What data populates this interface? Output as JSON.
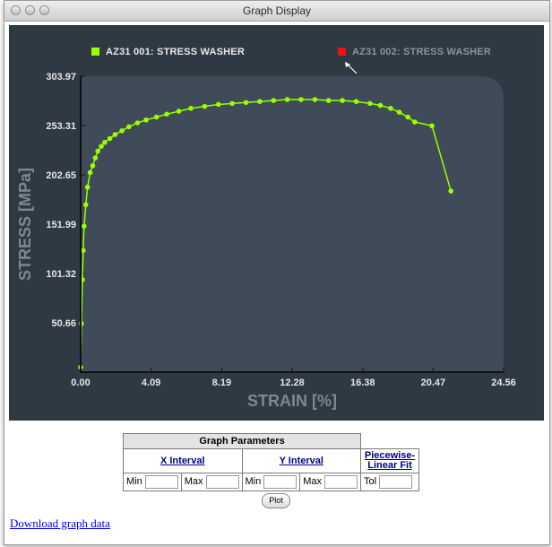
{
  "window": {
    "title": "Graph Display"
  },
  "legend": [
    {
      "label": "AZ31 001: STRESS WASHER",
      "color": "#99ff00",
      "active": true
    },
    {
      "label": "AZ31 002: STRESS WASHER",
      "color": "#ee1111",
      "active": false
    }
  ],
  "chart_data": {
    "type": "scatter",
    "xlabel": "STRAIN [%]",
    "ylabel": "STRESS [MPa]",
    "xlim": [
      0,
      24.56
    ],
    "ylim": [
      0,
      303.97
    ],
    "x_ticks": [
      "0.00",
      "4.09",
      "8.19",
      "12.28",
      "16.38",
      "20.47",
      "24.56"
    ],
    "y_ticks": [
      "50.66",
      "101.32",
      "151.99",
      "202.65",
      "253.31",
      "303.97"
    ],
    "series": [
      {
        "name": "AZ31 001: STRESS WASHER",
        "color": "#99ff00",
        "x": [
          0.0,
          0.05,
          0.1,
          0.15,
          0.2,
          0.3,
          0.4,
          0.55,
          0.7,
          0.85,
          1.0,
          1.2,
          1.4,
          1.7,
          2.0,
          2.4,
          2.8,
          3.3,
          3.8,
          4.4,
          5.0,
          5.7,
          6.4,
          7.2,
          8.0,
          8.8,
          9.6,
          10.4,
          11.2,
          12.0,
          12.8,
          13.6,
          14.4,
          15.2,
          16.0,
          16.8,
          17.4,
          18.0,
          18.5,
          19.0,
          19.4,
          20.4,
          21.5
        ],
        "y": [
          5,
          50,
          95,
          125,
          150,
          172,
          190,
          205,
          212,
          220,
          227,
          232,
          236,
          240,
          244,
          248,
          252,
          256,
          259,
          262,
          265,
          268,
          271,
          273,
          275,
          276,
          277,
          278,
          279,
          280,
          280,
          280,
          279,
          279,
          278,
          276,
          274,
          271,
          267,
          262,
          257,
          253,
          186
        ]
      }
    ]
  },
  "params": {
    "title": "Graph Parameters",
    "x_interval": "X Interval",
    "y_interval": "Y Interval",
    "fit": "Piecewise-Linear Fit",
    "min": "Min",
    "max": "Max",
    "tol": "Tol"
  },
  "plot_button": "Plot",
  "download_link": "Download graph data"
}
